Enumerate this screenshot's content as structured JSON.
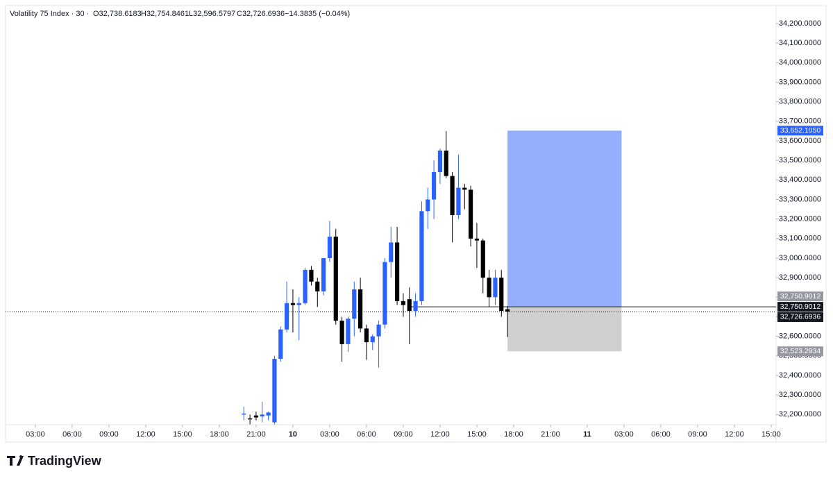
{
  "chart_data": {
    "type": "candlestick",
    "header": {
      "symbol": "Volatility 75 Index · 30 ·",
      "open": "O32,738.6183",
      "high": "H32,754.8461",
      "low": "L32,596.5797",
      "close": "C32,726.6936",
      "change": "−14.3835 (−0.04%)"
    },
    "brand": "TradingView",
    "up_color": "#2962ff",
    "down_color": "#000000",
    "x": [
      20,
      20.5,
      21,
      21.5,
      22,
      22.5,
      23,
      23.5,
      24,
      24.5,
      25,
      25.5,
      26,
      26.5,
      27,
      27.5,
      28,
      28.5,
      29,
      29.5,
      30,
      30.5,
      31,
      31.5,
      32,
      32.5,
      33,
      33.5,
      34,
      34.5,
      35,
      35.5,
      36,
      36.5,
      37,
      37.5,
      38,
      38.5,
      39,
      39.5,
      40,
      40.5,
      41,
      41.5
    ],
    "open": [
      32200,
      32180,
      32195,
      32190,
      32195,
      32160,
      32485,
      32635,
      32770,
      32760,
      32770,
      32940,
      32880,
      32830,
      33000,
      33110,
      32680,
      32560,
      32690,
      32840,
      32640,
      32570,
      32600,
      32660,
      32980,
      33080,
      32780,
      32790,
      32730,
      32780,
      33240,
      33300,
      33440,
      33550,
      33420,
      33220,
      33360,
      33350,
      33100,
      33090,
      32900,
      32800,
      32900,
      32738.6183
    ],
    "high": [
      32240,
      32200,
      32215,
      32265,
      32215,
      32500,
      32650,
      32880,
      32840,
      32800,
      32950,
      32960,
      32900,
      33000,
      33190,
      33150,
      32700,
      32700,
      32880,
      32900,
      32660,
      32610,
      32680,
      33000,
      33160,
      33160,
      32820,
      32850,
      32820,
      33290,
      33360,
      33500,
      33560,
      33650,
      33440,
      33530,
      33380,
      33370,
      33180,
      33100,
      32940,
      32940,
      32940,
      32754.8461
    ],
    "low": [
      32170,
      32150,
      32170,
      32160,
      32170,
      32150,
      32470,
      32620,
      32620,
      32580,
      32760,
      32860,
      32750,
      32810,
      32980,
      32660,
      32470,
      32520,
      32600,
      32620,
      32480,
      32530,
      32440,
      32640,
      32900,
      32760,
      32700,
      32560,
      32700,
      32760,
      33150,
      33200,
      33380,
      33410,
      33080,
      33200,
      33250,
      33060,
      32950,
      32820,
      32750,
      32760,
      32700,
      32596.5797
    ],
    "close": [
      32205,
      32175,
      32185,
      32200,
      32210,
      32485,
      32635,
      32770,
      32760,
      32770,
      32940,
      32880,
      32830,
      33000,
      33110,
      32680,
      32560,
      32690,
      32840,
      32640,
      32570,
      32600,
      32660,
      32980,
      33080,
      32780,
      32760,
      32730,
      32780,
      33240,
      33300,
      33440,
      33550,
      33420,
      33220,
      33360,
      33350,
      33100,
      33090,
      32900,
      32800,
      32900,
      32730,
      32726.6936
    ],
    "xlim": [
      0.57,
      63.4
    ],
    "xticks": [
      {
        "value": 3,
        "label": "03:00"
      },
      {
        "value": 6,
        "label": "06:00"
      },
      {
        "value": 9,
        "label": "09:00"
      },
      {
        "value": 12,
        "label": "12:00"
      },
      {
        "value": 15,
        "label": "15:00"
      },
      {
        "value": 18,
        "label": "18:00"
      },
      {
        "value": 21,
        "label": "21:00"
      },
      {
        "value": 24,
        "label": "10"
      },
      {
        "value": 27,
        "label": "03:00"
      },
      {
        "value": 30,
        "label": "06:00"
      },
      {
        "value": 33,
        "label": "09:00"
      },
      {
        "value": 36,
        "label": "12:00"
      },
      {
        "value": 39,
        "label": "15:00"
      },
      {
        "value": 42,
        "label": "18:00"
      },
      {
        "value": 45,
        "label": "21:00"
      },
      {
        "value": 48,
        "label": "11"
      },
      {
        "value": 51,
        "label": "03:00"
      },
      {
        "value": 54,
        "label": "06:00"
      },
      {
        "value": 57,
        "label": "09:00"
      },
      {
        "value": 60,
        "label": "12:00"
      },
      {
        "value": 63,
        "label": "15:00"
      }
    ],
    "ylim": [
      32155,
      34260
    ],
    "yticks": [
      {
        "value": 32200,
        "label": "32,200.0000"
      },
      {
        "value": 32300,
        "label": "32,300.0000"
      },
      {
        "value": 32400,
        "label": "32,400.0000"
      },
      {
        "value": 32500,
        "label": "32,500.0000"
      },
      {
        "value": 32600,
        "label": "32,600.0000"
      },
      {
        "value": 32700,
        "label": "32,700.0000"
      },
      {
        "value": 32800,
        "label": "32,800.0000"
      },
      {
        "value": 32900,
        "label": "32,900.0000"
      },
      {
        "value": 33000,
        "label": "33,000.0000"
      },
      {
        "value": 33100,
        "label": "33,100.0000"
      },
      {
        "value": 33200,
        "label": "33,200.0000"
      },
      {
        "value": 33300,
        "label": "33,300.0000"
      },
      {
        "value": 33400,
        "label": "33,400.0000"
      },
      {
        "value": 33500,
        "label": "33,500.0000"
      },
      {
        "value": 33600,
        "label": "33,600.0000"
      },
      {
        "value": 33700,
        "label": "33,700.0000"
      },
      {
        "value": 33800,
        "label": "33,800.0000"
      },
      {
        "value": 33900,
        "label": "33,900.0000"
      },
      {
        "value": 34000,
        "label": "34,000.0000"
      },
      {
        "value": 34100,
        "label": "34,100.0000"
      },
      {
        "value": 34200,
        "label": "34,200.0000"
      }
    ],
    "position": {
      "x_start": 41.5,
      "x_end": 50.8,
      "target": 33652.105,
      "entry": 32750.9012,
      "stop": 32523.2934,
      "target_label": "33,652.1050",
      "entry_label": "32,750.9012",
      "stop_label": "32,523.2934",
      "profit_color": "#94aefc",
      "loss_color": "#cfcfcf"
    },
    "last_price": 32726.6936,
    "last_price_label": "32,726.6936"
  }
}
